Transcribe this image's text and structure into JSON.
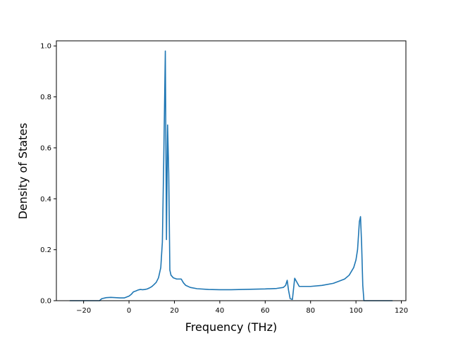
{
  "chart_data": {
    "type": "line",
    "title": "",
    "xlabel": "Frequency (THz)",
    "ylabel": "Density of States",
    "xlim": [
      -32,
      122
    ],
    "ylim": [
      0,
      1.02
    ],
    "xticks": [
      -20,
      0,
      20,
      40,
      60,
      80,
      100,
      120
    ],
    "xtick_labels": [
      "−20",
      "0",
      "20",
      "40",
      "60",
      "80",
      "100",
      "120"
    ],
    "yticks": [
      0.0,
      0.2,
      0.4,
      0.6,
      0.8,
      1.0
    ],
    "ytick_labels": [
      "0.0",
      "0.2",
      "0.4",
      "0.6",
      "0.8",
      "1.0"
    ],
    "grid": false,
    "series": [
      {
        "color": "#1f77b4",
        "x": [
          -26,
          -15,
          -13,
          -12,
          -10,
          -8,
          -6,
          -4,
          -2,
          0,
          1,
          2,
          3,
          4,
          5,
          6,
          7,
          8,
          9,
          10,
          11,
          12,
          13,
          14,
          14.7,
          15.3,
          16.0,
          16.5,
          17.0,
          17.5,
          18.0,
          18.5,
          19.5,
          21,
          23,
          24,
          25,
          27,
          30,
          35,
          40,
          45,
          50,
          55,
          60,
          65,
          68,
          69,
          69.7,
          70.3,
          71,
          72,
          73,
          75,
          80,
          85,
          90,
          93,
          95,
          97,
          99,
          100,
          100.7,
          101.5,
          102,
          102.5,
          103,
          103.5,
          104,
          106,
          110,
          116
        ],
        "y": [
          0.0,
          0.0,
          0.0,
          0.008,
          0.012,
          0.013,
          0.012,
          0.011,
          0.011,
          0.018,
          0.025,
          0.035,
          0.038,
          0.042,
          0.044,
          0.043,
          0.044,
          0.046,
          0.05,
          0.055,
          0.063,
          0.072,
          0.09,
          0.13,
          0.23,
          0.55,
          0.98,
          0.24,
          0.69,
          0.5,
          0.12,
          0.1,
          0.09,
          0.085,
          0.085,
          0.07,
          0.06,
          0.052,
          0.047,
          0.044,
          0.043,
          0.043,
          0.044,
          0.045,
          0.046,
          0.048,
          0.052,
          0.06,
          0.08,
          0.04,
          0.008,
          0.005,
          0.088,
          0.056,
          0.056,
          0.06,
          0.068,
          0.078,
          0.085,
          0.1,
          0.13,
          0.16,
          0.2,
          0.31,
          0.33,
          0.22,
          0.06,
          0.0,
          0.0,
          0.0,
          0.0,
          0.0
        ]
      }
    ]
  }
}
